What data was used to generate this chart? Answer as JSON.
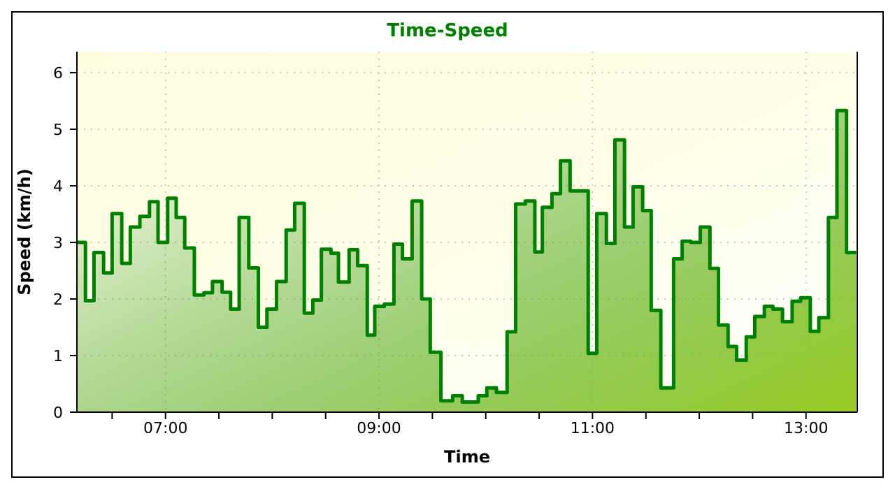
{
  "chart_data": {
    "type": "area",
    "title": "Time-Speed",
    "xlabel": "Time",
    "ylabel": "Speed (km/h)",
    "grid": true,
    "marker": "none",
    "line_style": "solid",
    "xlim": [
      6.17,
      13.48
    ],
    "ylim": [
      0,
      6.37
    ],
    "xticks": [
      {
        "value": 6.5,
        "label": null
      },
      {
        "value": 7,
        "label": "07:00"
      },
      {
        "value": 7.5,
        "label": null
      },
      {
        "value": 8,
        "label": null
      },
      {
        "value": 8.5,
        "label": null
      },
      {
        "value": 9,
        "label": "09:00"
      },
      {
        "value": 9.5,
        "label": null
      },
      {
        "value": 10,
        "label": null
      },
      {
        "value": 10.5,
        "label": null
      },
      {
        "value": 11,
        "label": "11:00"
      },
      {
        "value": 11.5,
        "label": null
      },
      {
        "value": 12,
        "label": null
      },
      {
        "value": 12.5,
        "label": null
      },
      {
        "value": 13,
        "label": "13:00"
      }
    ],
    "yticks": [
      0,
      1,
      2,
      3,
      4,
      5,
      6
    ],
    "series": [
      {
        "color": "#008000",
        "x": [
          6.17,
          6.25,
          6.25,
          6.33,
          6.33,
          6.42,
          6.42,
          6.5,
          6.5,
          6.59,
          6.59,
          6.67,
          6.67,
          6.76,
          6.76,
          6.85,
          6.85,
          6.93,
          6.93,
          7.02,
          7.02,
          7.1,
          7.1,
          7.18,
          7.18,
          7.27,
          7.27,
          7.36,
          7.36,
          7.44,
          7.44,
          7.53,
          7.53,
          7.61,
          7.61,
          7.69,
          7.69,
          7.78,
          7.78,
          7.87,
          7.87,
          7.95,
          7.95,
          8.04,
          8.04,
          8.13,
          8.13,
          8.21,
          8.21,
          8.3,
          8.3,
          8.38,
          8.38,
          8.46,
          8.46,
          8.55,
          8.55,
          8.62,
          8.62,
          8.72,
          8.72,
          8.8,
          8.8,
          8.89,
          8.89,
          8.96,
          8.96,
          9.05,
          9.05,
          9.14,
          9.14,
          9.22,
          9.22,
          9.31,
          9.31,
          9.4,
          9.4,
          9.48,
          9.48,
          9.58,
          9.58,
          9.69,
          9.69,
          9.78,
          9.78,
          9.93,
          9.93,
          10.01,
          10.01,
          10.1,
          10.1,
          10.2,
          10.2,
          10.28,
          10.28,
          10.37,
          10.37,
          10.46,
          10.46,
          10.53,
          10.53,
          10.62,
          10.62,
          10.7,
          10.7,
          10.79,
          10.79,
          10.96,
          10.96,
          11.04,
          11.04,
          11.13,
          11.13,
          11.21,
          11.21,
          11.3,
          11.3,
          11.38,
          11.38,
          11.47,
          11.47,
          11.55,
          11.55,
          11.64,
          11.64,
          11.76,
          11.76,
          11.84,
          11.84,
          11.92,
          11.92,
          12.01,
          12.01,
          12.1,
          12.1,
          12.18,
          12.18,
          12.27,
          12.27,
          12.35,
          12.35,
          12.44,
          12.44,
          12.52,
          12.52,
          12.61,
          12.61,
          12.69,
          12.69,
          12.78,
          12.78,
          12.87,
          12.87,
          12.95,
          12.95,
          13.04,
          13.04,
          13.12,
          13.12,
          13.21,
          13.21,
          13.29,
          13.29,
          13.38,
          13.38,
          13.47
        ],
        "values": [
          3.0,
          3.0,
          1.97,
          1.97,
          2.82,
          2.82,
          2.46,
          2.46,
          3.51,
          3.51,
          2.63,
          2.63,
          3.27,
          3.27,
          3.46,
          3.46,
          3.72,
          3.72,
          3.0,
          3.0,
          3.78,
          3.78,
          3.44,
          3.44,
          2.9,
          2.9,
          2.07,
          2.07,
          2.11,
          2.11,
          2.31,
          2.31,
          2.12,
          2.12,
          1.82,
          1.82,
          3.44,
          3.44,
          2.55,
          2.55,
          1.5,
          1.5,
          1.82,
          1.82,
          2.31,
          2.31,
          3.22,
          3.22,
          3.69,
          3.69,
          1.75,
          1.75,
          1.98,
          1.98,
          2.88,
          2.88,
          2.81,
          2.81,
          2.3,
          2.3,
          2.87,
          2.87,
          2.59,
          2.59,
          1.36,
          1.36,
          1.87,
          1.87,
          1.91,
          1.91,
          2.97,
          2.97,
          2.71,
          2.71,
          3.73,
          3.73,
          2.0,
          2.0,
          1.06,
          1.06,
          0.2,
          0.2,
          0.29,
          0.29,
          0.18,
          0.18,
          0.29,
          0.29,
          0.43,
          0.43,
          0.35,
          0.35,
          1.42,
          1.42,
          3.68,
          3.68,
          3.73,
          3.73,
          2.83,
          2.83,
          3.62,
          3.62,
          3.86,
          3.86,
          4.44,
          4.44,
          3.91,
          3.91,
          1.04,
          1.04,
          3.51,
          3.51,
          2.98,
          2.98,
          4.81,
          4.81,
          3.27,
          3.27,
          3.98,
          3.98,
          3.56,
          3.56,
          1.8,
          1.8,
          0.43,
          0.43,
          2.71,
          2.71,
          3.02,
          3.02,
          3.0,
          3.0,
          3.27,
          3.27,
          2.54,
          2.54,
          1.54,
          1.54,
          1.16,
          1.16,
          0.92,
          0.92,
          1.33,
          1.33,
          1.69,
          1.69,
          1.87,
          1.87,
          1.82,
          1.82,
          1.6,
          1.6,
          1.96,
          1.96,
          2.02,
          2.02,
          1.43,
          1.43,
          1.67,
          1.67,
          3.44,
          3.44,
          5.33,
          5.33,
          2.82,
          2.82
        ]
      }
    ]
  }
}
